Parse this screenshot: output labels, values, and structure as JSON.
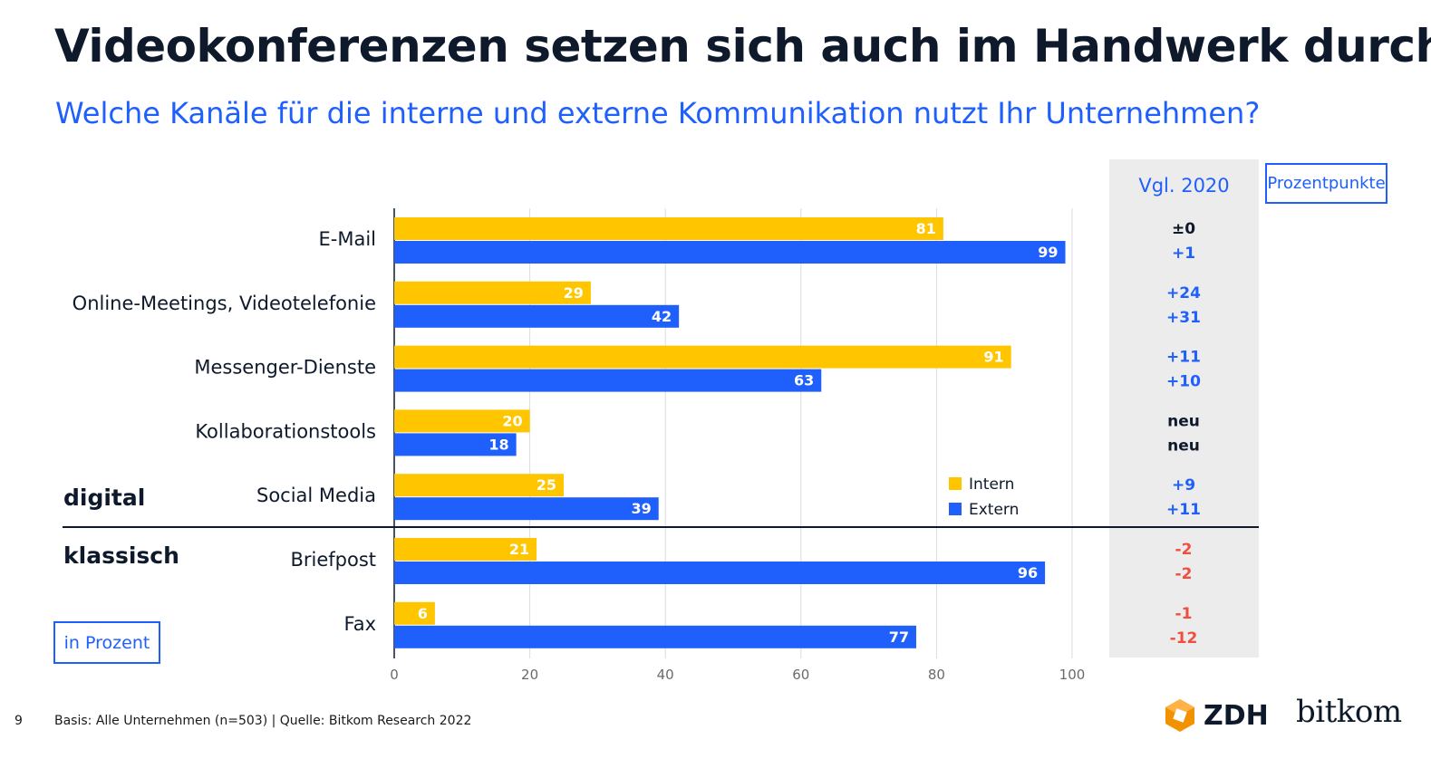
{
  "header": {
    "title": "Videokonferenzen setzen sich auch im Handwerk durch",
    "subtitle": "Welche Kanäle für die interne und externe Kommunikation nutzt Ihr Unternehmen?"
  },
  "comparison": {
    "heading": "Vgl. 2020",
    "unit_box": "Prozentpunkte"
  },
  "unit_note": "in Prozent",
  "groups": {
    "digital": "digital",
    "klassisch": "klassisch"
  },
  "footer": {
    "page": "9",
    "source": "Basis: Alle Unternehmen (n=503) | Quelle: Bitkom Research 2022"
  },
  "logos": {
    "zdh": "ZDH",
    "bitkom": "bitkom"
  },
  "colors": {
    "intern": "#ffc600",
    "extern": "#1f5ffc",
    "positive": "#1f5ffc",
    "negative": "#f04e3e",
    "neutral": "#0e1a2b",
    "zdh_orange": "#f39200"
  },
  "chart_data": {
    "type": "bar",
    "orientation": "horizontal",
    "categories": [
      "E-Mail",
      "Online-Meetings, Videotelefonie",
      "Messenger-Dienste",
      "Kollaborationstools",
      "Social Media",
      "Briefpost",
      "Fax"
    ],
    "series": [
      {
        "name": "Intern",
        "values": [
          81,
          29,
          91,
          20,
          25,
          21,
          6
        ]
      },
      {
        "name": "Extern",
        "values": [
          99,
          42,
          63,
          18,
          39,
          96,
          77
        ]
      }
    ],
    "comparison_2020": [
      [
        "±0",
        "+1"
      ],
      [
        "+24",
        "+31"
      ],
      [
        "+11",
        "+10"
      ],
      [
        "neu",
        "neu"
      ],
      [
        "+9",
        "+11"
      ],
      [
        "-2",
        "-2"
      ],
      [
        "-1",
        "-12"
      ]
    ],
    "xlim": [
      0,
      100
    ],
    "xticks": [
      0,
      20,
      40,
      60,
      80,
      100
    ],
    "grid": true,
    "legend": "bottom-right inside plot"
  }
}
